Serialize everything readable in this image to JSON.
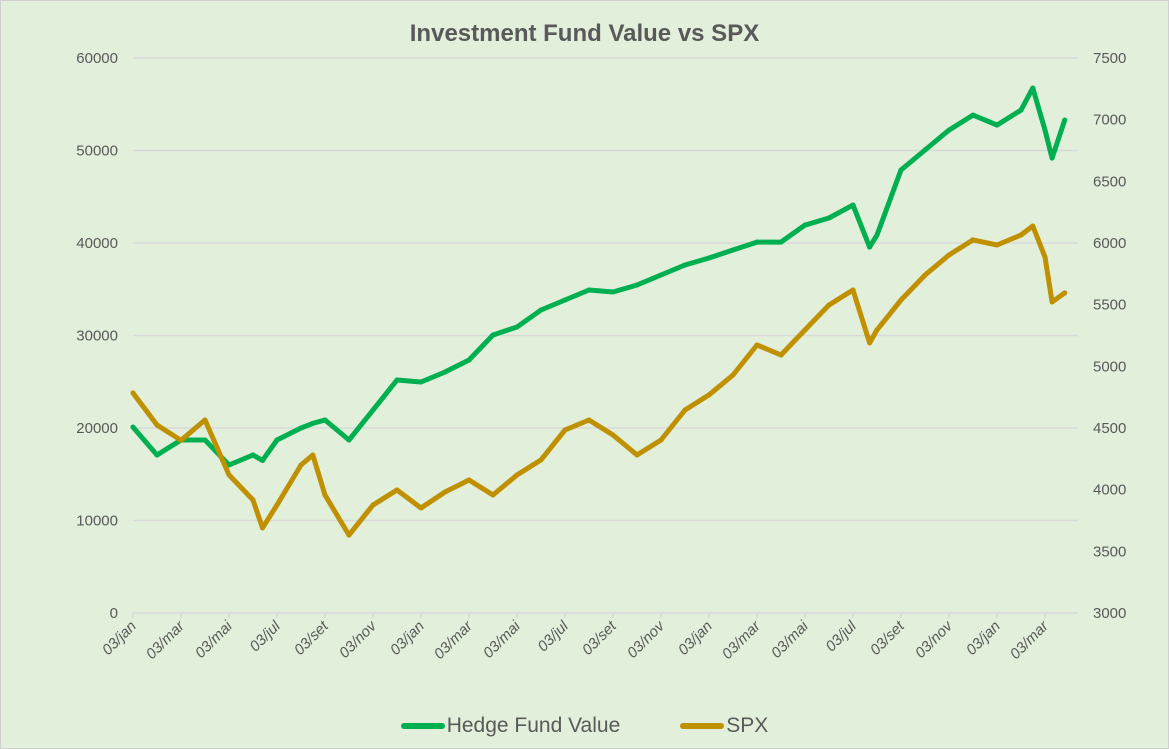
{
  "colors": {
    "background": "#e2efda",
    "hedge": "#00b050",
    "spx": "#bf9000",
    "grid": "#d9d9d9"
  },
  "chart_data": {
    "type": "line",
    "title": "Investment Fund Value vs SPX",
    "grid": true,
    "legend_position": "bottom",
    "x_tick_labels": [
      "03/jan",
      "03/mar",
      "03/mai",
      "03/jul",
      "03/set",
      "03/nov",
      "03/jan",
      "03/mar",
      "03/mai",
      "03/jul",
      "03/set",
      "03/nov",
      "03/jan",
      "03/mar",
      "03/mai",
      "03/jul",
      "03/set",
      "03/nov",
      "03/jan",
      "03/mar"
    ],
    "y_left": {
      "range": [
        0,
        60000
      ],
      "ticks": [
        "0",
        "10000",
        "20000",
        "30000",
        "40000",
        "50000",
        "60000"
      ]
    },
    "y_right": {
      "range": [
        3000,
        7500
      ],
      "ticks": [
        "3000",
        "3500",
        "4000",
        "4500",
        "5000",
        "5500",
        "6000",
        "6500",
        "7000",
        "7500"
      ]
    },
    "x": [
      "03/jan",
      "03/fev",
      "03/mar",
      "03/abr",
      "03/mai",
      "03/jun",
      "15/jun",
      "03/jul",
      "03/ago",
      "18/ago",
      "03/set",
      "03/out",
      "03/nov",
      "03/dez",
      "03/jan",
      "03/fev",
      "03/mar",
      "03/abr",
      "03/mai",
      "03/jun",
      "03/jul",
      "03/ago",
      "03/set",
      "03/out",
      "03/nov",
      "03/dez",
      "03/jan",
      "03/fev",
      "03/mar",
      "03/abr",
      "03/mai",
      "03/jun",
      "03/jul",
      "24/jul",
      "03/ago",
      "03/set",
      "03/out",
      "03/nov",
      "03/dez",
      "03/jan",
      "03/fev",
      "18/fev",
      "03/mar",
      "12/mar",
      "28/mar"
    ],
    "series": [
      {
        "name": "Hedge Fund Value",
        "axis": "left",
        "color": "#00b050",
        "values": [
          20100,
          17080,
          18700,
          18700,
          16000,
          17080,
          16500,
          18700,
          20000,
          20500,
          20860,
          18700,
          21940,
          25190,
          24970,
          26050,
          27350,
          30050,
          30920,
          32760,
          33840,
          34920,
          34700,
          35460,
          36540,
          37620,
          38380,
          39240,
          40100,
          40100,
          41940,
          42700,
          44100,
          39560,
          40860,
          47890,
          50050,
          52210,
          53830,
          52750,
          54370,
          56750,
          52210,
          49180,
          53290
        ]
      },
      {
        "name": "SPX",
        "axis": "right",
        "color": "#bf9000",
        "values": [
          4784,
          4524,
          4400,
          4565,
          4120,
          3916,
          3690,
          3876,
          4200,
          4281,
          3957,
          3632,
          3876,
          3997,
          3851,
          3981,
          4078,
          3957,
          4119,
          4241,
          4484,
          4565,
          4443,
          4281,
          4403,
          4646,
          4768,
          4930,
          5173,
          5092,
          5295,
          5497,
          5619,
          5190,
          5295,
          5538,
          5740,
          5903,
          6025,
          5984,
          6065,
          6138,
          5886,
          5522,
          5595
        ]
      }
    ]
  }
}
